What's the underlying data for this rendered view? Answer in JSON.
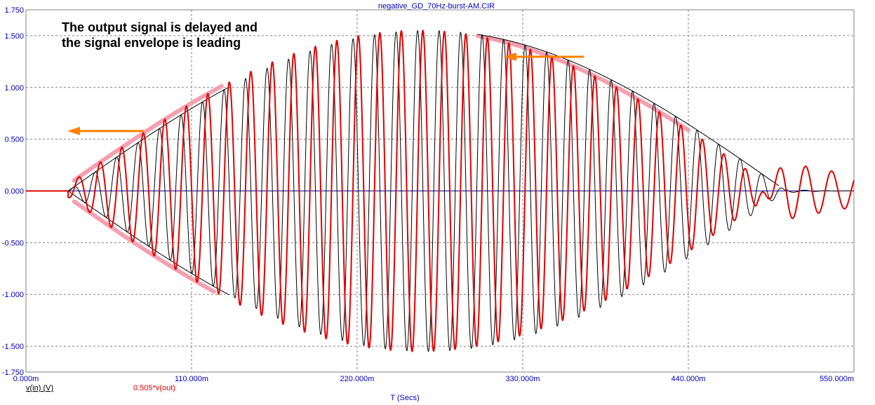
{
  "chart_data": {
    "type": "line",
    "title": "negative_GD_70Hz-burst-AM.CIR",
    "xlabel": "T (Secs)",
    "ylabel": "",
    "xlim": [
      0,
      0.55
    ],
    "ylim": [
      -1.75,
      1.75
    ],
    "x_ticks": [
      "0.000m",
      "110.000m",
      "220.000m",
      "330.000m",
      "440.000m",
      "550.000m"
    ],
    "y_ticks": [
      "1.750",
      "1.500",
      "1.000",
      "0.500",
      "0.000",
      "-0.500",
      "-1.000",
      "-1.500",
      "-1.750"
    ],
    "grid": true,
    "signal": {
      "carrier_hz": 70,
      "burst_start": 0.028,
      "burst_end": 0.505,
      "peak_amplitude": 1.55,
      "output_scale": 0.505
    },
    "series": [
      {
        "name": "v(in) (V)",
        "color": "#000000"
      },
      {
        "name": "0.505*v(out)",
        "color": "#e00000"
      }
    ],
    "annotations": [
      {
        "text_line1": "The output signal is delayed and",
        "text_line2": "the signal envelope is leading"
      }
    ]
  }
}
